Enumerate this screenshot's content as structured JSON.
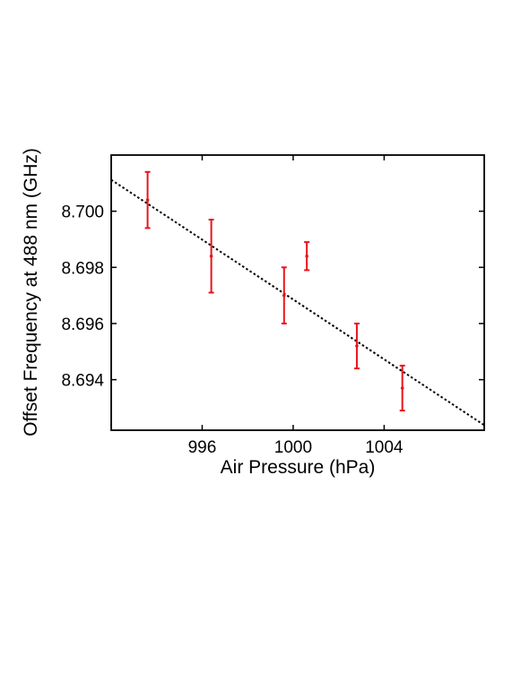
{
  "chart_data": {
    "type": "scatter",
    "title": "",
    "xlabel": "Air Pressure (hPa)",
    "ylabel": "Offset Frequency at 488 nm (GHz)",
    "xlim": [
      992.0,
      1008.4
    ],
    "ylim": [
      8.6922,
      8.702
    ],
    "x_ticks": [
      996,
      1000,
      1004
    ],
    "y_ticks": [
      8.694,
      8.696,
      8.698,
      8.7
    ],
    "x_tick_labels": [
      "996",
      "1000",
      "1004"
    ],
    "y_tick_labels": [
      "8.694",
      "8.696",
      "8.698",
      "8.700"
    ],
    "grid": false,
    "series": [
      {
        "kind": "errorbar",
        "color": "#e8141b",
        "points": [
          {
            "x": 993.6,
            "y": 8.7004,
            "err": 0.001
          },
          {
            "x": 996.4,
            "y": 8.6984,
            "err": 0.0013
          },
          {
            "x": 999.6,
            "y": 8.697,
            "err": 0.001
          },
          {
            "x": 1000.6,
            "y": 8.6984,
            "err": 0.0005
          },
          {
            "x": 1002.8,
            "y": 8.6952,
            "err": 0.0008
          },
          {
            "x": 1004.8,
            "y": 8.6937,
            "err": 0.0008
          }
        ]
      },
      {
        "kind": "fit",
        "color": "#000000",
        "style": "dotted",
        "x": [
          992.0,
          1008.4
        ],
        "y": [
          8.70112,
          8.69238
        ]
      }
    ]
  }
}
